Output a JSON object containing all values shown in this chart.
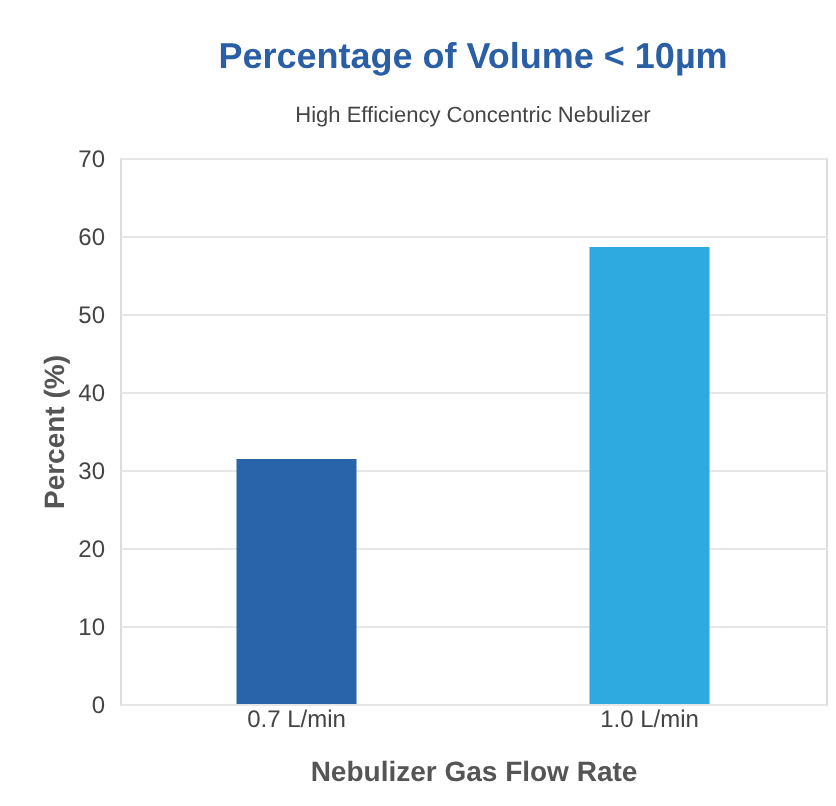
{
  "chart_data": {
    "type": "bar",
    "title": "Percentage of Volume  < 10µm",
    "subtitle": "High Efficiency Concentric Nebulizer",
    "xlabel": "Nebulizer Gas Flow Rate",
    "ylabel": "Percent (%)",
    "categories": [
      "0.7 L/min",
      "1.0 L/min"
    ],
    "values": [
      31.4,
      58.6
    ],
    "colors": [
      "#2964ab",
      "#2eaae1"
    ],
    "ylim": [
      0,
      70
    ],
    "yticks": [
      0,
      10,
      20,
      30,
      40,
      50,
      60,
      70
    ],
    "grid": "y"
  }
}
